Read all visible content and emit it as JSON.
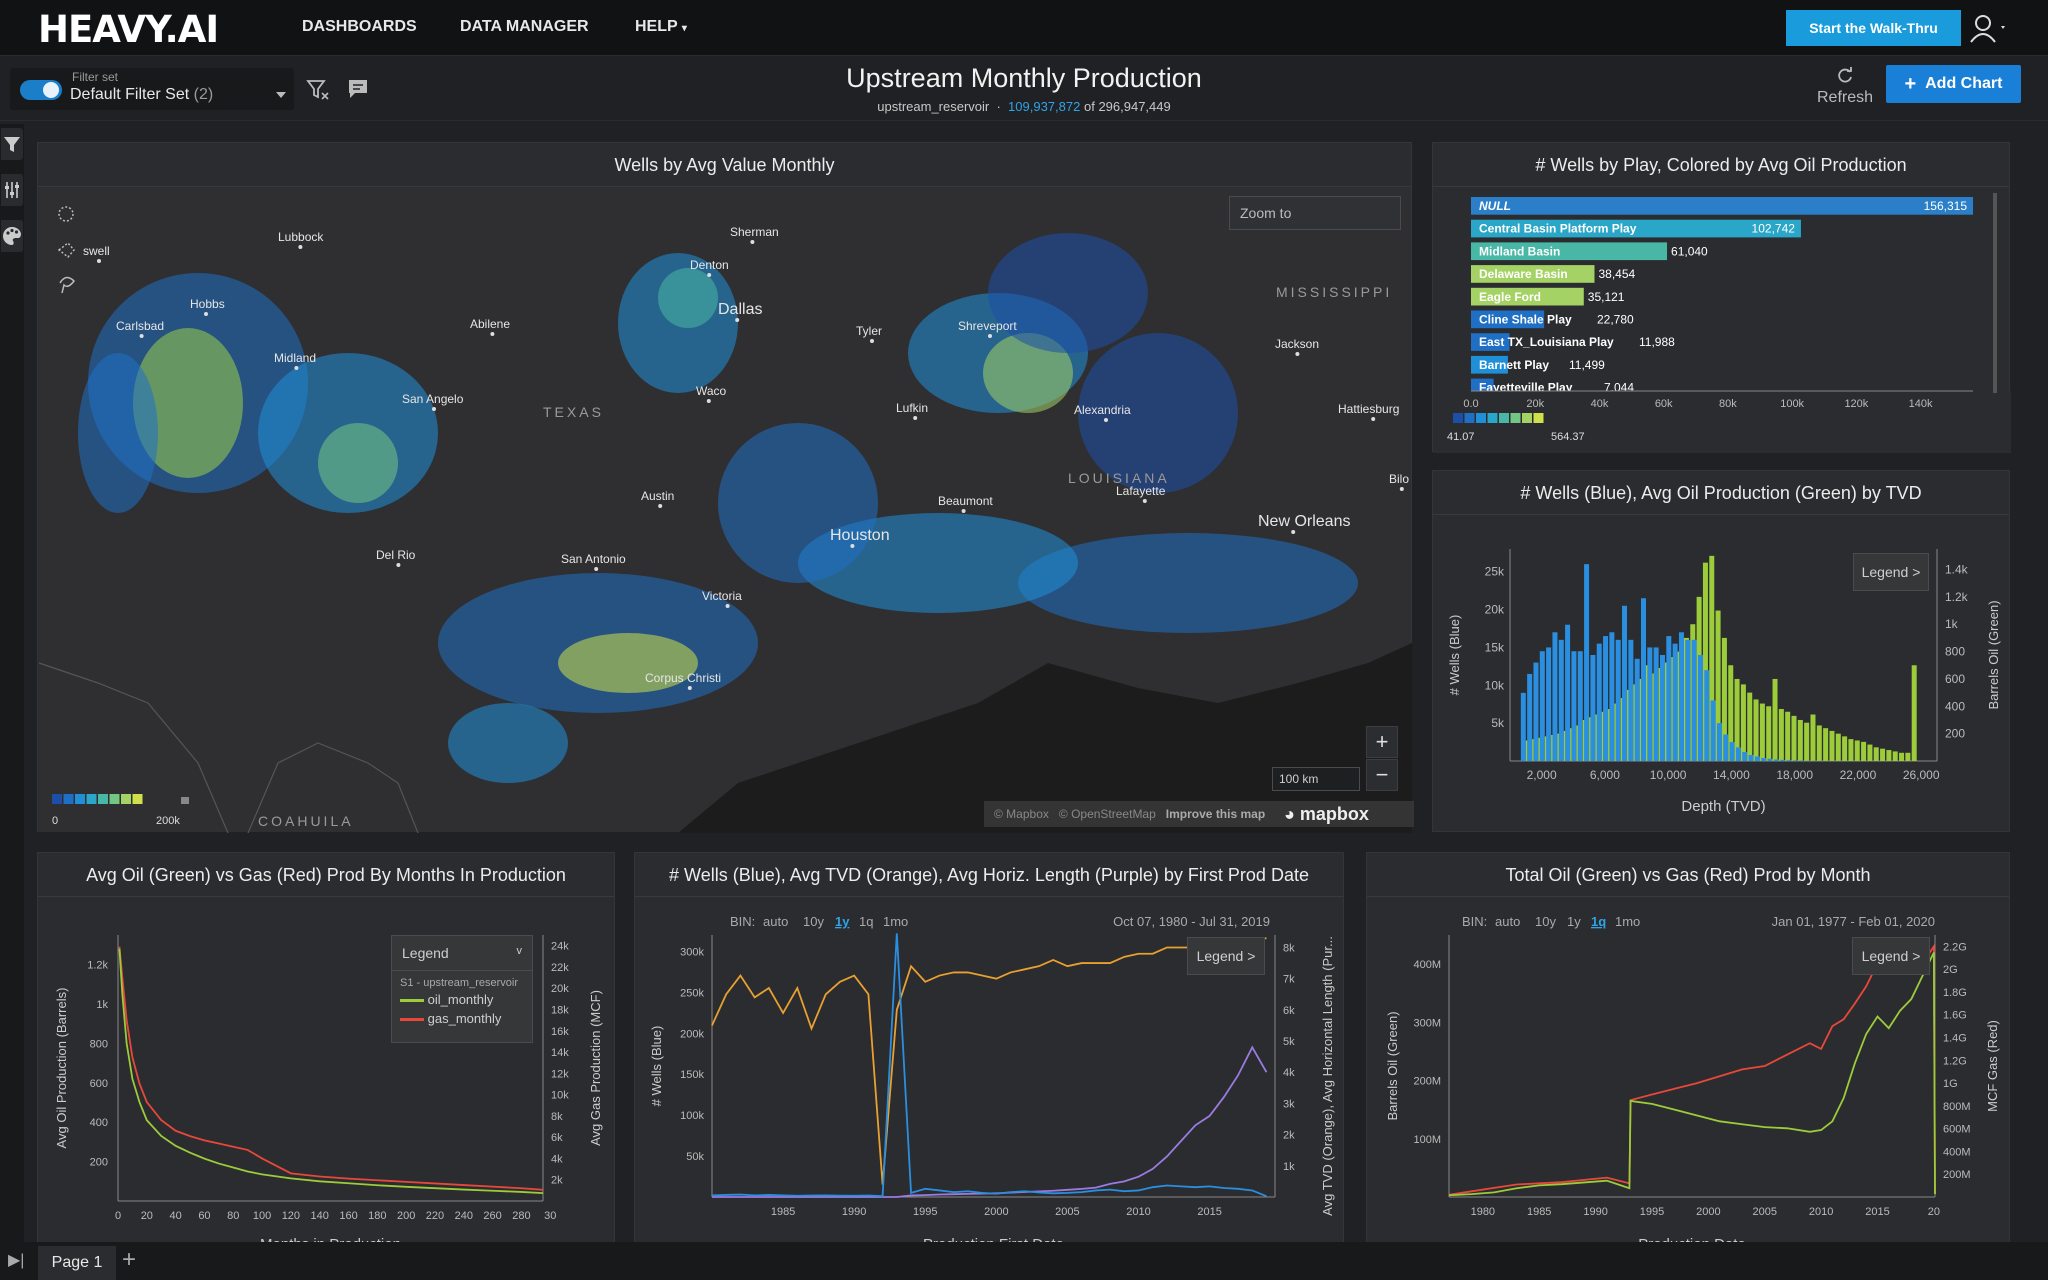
{
  "app": {
    "logo": "HEAVY.AI",
    "nav": [
      "DASHBOARDS",
      "DATA MANAGER",
      "HELP"
    ],
    "walkthru_label": "Start the Walk-Thru"
  },
  "toolbar": {
    "filter_set_label": "Filter set",
    "filter_set_value": "Default Filter Set",
    "filter_set_count": "(2)",
    "refresh_label": "Refresh",
    "add_chart_label": "Add Chart"
  },
  "dashboard": {
    "title": "Upstream Monthly Production",
    "table": "upstream_reservoir",
    "filtered_count": "109,937,872",
    "of_label": "of",
    "total_count": "296,947,449"
  },
  "map_panel": {
    "title": "Wells by Avg Value Monthly",
    "zoom_to_placeholder": "Zoom to",
    "cities": [
      "Lubbock",
      "swell",
      "Hobbs",
      "Carlsbad",
      "Midland",
      "Abilene",
      "Sherman",
      "Denton",
      "Dallas",
      "Tyler",
      "Shreveport",
      "Jackson",
      "San Angelo",
      "Waco",
      "Lufkin",
      "Alexandria",
      "Hattiesburg",
      "Austin",
      "Beaumont",
      "Lafayette",
      "Bilo",
      "Del Rio",
      "San Antonio",
      "Houston",
      "New Orleans",
      "Victoria",
      "Corpus Christi"
    ],
    "regions": [
      "TEXAS",
      "LOUISIANA",
      "MISSISSIPPI",
      "COAHUILA"
    ],
    "legend_min": "0",
    "legend_max": "200k",
    "scale_label": "100 km",
    "attribution": [
      "© Mapbox",
      "© OpenStreetMap",
      "Improve this map"
    ],
    "mapbox_label": "mapbox",
    "ramp_colors": [
      "#1d4fa8",
      "#1f6fc4",
      "#1f8fd8",
      "#2aa6c8",
      "#49b7a6",
      "#74c684",
      "#a4d264",
      "#cfe04a"
    ]
  },
  "play_panel": {
    "title": "# Wells by Play, Colored by Avg Oil Production",
    "legend_min": "41.07",
    "legend_max": "564.37",
    "x_ticks": [
      "0.0",
      "20k",
      "40k",
      "60k",
      "80k",
      "100k",
      "120k",
      "140k"
    ]
  },
  "tvd_panel": {
    "title": "# Wells (Blue), Avg Oil Production (Green) by TVD",
    "legend_label": "Legend >"
  },
  "months_panel": {
    "title": "Avg Oil (Green) vs Gas (Red) Prod By Months In Production",
    "legend_title": "Legend",
    "legend_source": "S1 - upstream_reservoir"
  },
  "first_prod_panel": {
    "title": "# Wells (Blue), Avg TVD (Orange), Avg Horiz. Length (Purple) by First Prod Date",
    "bin_label": "BIN:",
    "bins": [
      "auto",
      "10y",
      "1y",
      "1q",
      "1mo"
    ],
    "active_bin": "1y",
    "date_range": "Oct 07, 1980 - Jul 31, 2019",
    "legend_label": "Legend >"
  },
  "monthly_panel": {
    "title": "Total Oil (Green) vs Gas (Red) Prod by Month",
    "bin_label": "BIN:",
    "bins": [
      "auto",
      "10y",
      "1y",
      "1q",
      "1mo"
    ],
    "active_bin": "1q",
    "date_range": "Jan 01, 1977 - Feb 01, 2020",
    "legend_label": "Legend >"
  },
  "pages": {
    "tabs": [
      "Page 1"
    ]
  },
  "colors": {
    "accent": "#1a9bdc",
    "blue_series": "#2a8fe0",
    "green_series": "#9ccc3a",
    "red_series": "#e8483a",
    "orange_series": "#e8a030",
    "purple_series": "#9b7be0"
  },
  "chart_data": [
    {
      "type": "bar",
      "title": "# Wells by Play, Colored by Avg Oil Production",
      "orientation": "horizontal",
      "categories": [
        "NULL",
        "Central Basin Platform Play",
        "Midland Basin",
        "Delaware Basin",
        "Eagle Ford",
        "Cline Shale Play",
        "East TX_Louisiana Play",
        "Barnett Play",
        "Fayetteville Play"
      ],
      "values": [
        156315,
        102742,
        61040,
        38454,
        35121,
        22780,
        11988,
        11499,
        7044
      ],
      "value_labels": [
        "156,315",
        "102,742",
        "61,040",
        "38,454",
        "35,121",
        "22,780",
        "11,988",
        "11,499",
        "7,044"
      ],
      "color_values": [
        180,
        260,
        340,
        520,
        500,
        120,
        90,
        160,
        110
      ],
      "xlim": [
        0,
        156315
      ],
      "x_ticks": [
        "0.0",
        "20k",
        "40k",
        "60k",
        "80k",
        "100k",
        "120k",
        "140k"
      ],
      "color_legend": [
        "41.07",
        "564.37"
      ]
    },
    {
      "type": "bar",
      "title": "# Wells (Blue), Avg Oil Production (Green) by TVD",
      "xlabel": "Depth (TVD)",
      "ylabel": "# Wells (Blue)",
      "y2label": "Barrels Oil (Green)",
      "xlim": [
        0,
        27000
      ],
      "ylim": [
        0,
        28000
      ],
      "y2lim": [
        0,
        1550
      ],
      "x_ticks": [
        "2,000",
        "6,000",
        "10,000",
        "14,000",
        "18,000",
        "22,000",
        "26,000"
      ],
      "y_ticks": [
        "5k",
        "10k",
        "15k",
        "20k",
        "25k"
      ],
      "y2_ticks": [
        "200",
        "400",
        "600",
        "800",
        "1k",
        "1.2k",
        "1.4k"
      ],
      "x": [
        1000,
        1400,
        1800,
        2200,
        2600,
        3000,
        3400,
        3800,
        4200,
        4600,
        5000,
        5400,
        5800,
        6200,
        6600,
        7000,
        7400,
        7800,
        8200,
        8600,
        9000,
        9400,
        9800,
        10200,
        10600,
        11000,
        11400,
        11800,
        12200,
        12600,
        13000,
        13400,
        13800,
        14200,
        14600,
        15000,
        15400,
        15800,
        16200,
        16600,
        17000,
        17400,
        17800,
        18200,
        18600,
        19000,
        19400,
        19800,
        20200,
        20600,
        21000,
        21400,
        21800,
        22200,
        22600,
        23000,
        23400,
        23800,
        24200,
        24600,
        25000,
        25400
      ],
      "series": [
        {
          "name": "# Wells",
          "values": [
            9000,
            11500,
            13000,
            14500,
            15000,
            17000,
            16000,
            18000,
            14500,
            14500,
            26000,
            14000,
            15500,
            16500,
            17000,
            16000,
            20500,
            16000,
            13500,
            21500,
            15000,
            15000,
            14000,
            16500,
            15500,
            17000,
            16000,
            16000,
            14000,
            12000,
            8000,
            5000,
            3500,
            2500,
            1800,
            1200,
            800,
            600,
            400,
            300,
            200,
            150,
            100,
            80,
            60,
            40,
            30,
            20,
            15,
            10,
            8,
            5,
            4,
            3,
            2,
            2,
            1,
            1,
            1,
            1,
            1,
            1
          ]
        },
        {
          "name": "Avg Oil",
          "values": [
            150,
            160,
            170,
            180,
            190,
            200,
            220,
            240,
            260,
            300,
            320,
            340,
            360,
            380,
            420,
            460,
            520,
            560,
            600,
            700,
            640,
            680,
            720,
            760,
            800,
            900,
            1000,
            1200,
            1450,
            1500,
            1100,
            900,
            700,
            600,
            560,
            500,
            450,
            420,
            400,
            600,
            380,
            360,
            330,
            300,
            280,
            340,
            260,
            240,
            220,
            200,
            180,
            160,
            150,
            140,
            120,
            100,
            90,
            80,
            70,
            60,
            60,
            700
          ]
        }
      ]
    },
    {
      "type": "line",
      "title": "Avg Oil (Green) vs Gas (Red) Prod By Months In Production",
      "xlabel": "Months in Production",
      "ylabel": "Avg Oil Production (Barrels)",
      "y2label": "Avg Gas Production (MCF)",
      "xlim": [
        0,
        295
      ],
      "ylim": [
        0,
        1350
      ],
      "y2lim": [
        0,
        25000
      ],
      "x_ticks": [
        "0",
        "20",
        "40",
        "60",
        "80",
        "100",
        "120",
        "140",
        "160",
        "180",
        "200",
        "220",
        "240",
        "260",
        "280",
        "30"
      ],
      "y_ticks": [
        "200",
        "400",
        "600",
        "800",
        "1k",
        "1.2k"
      ],
      "y2_ticks": [
        "2k",
        "4k",
        "6k",
        "8k",
        "10k",
        "12k",
        "14k",
        "16k",
        "18k",
        "20k",
        "22k",
        "24k"
      ],
      "x": [
        1,
        3,
        6,
        10,
        15,
        20,
        30,
        40,
        50,
        60,
        70,
        80,
        90,
        100,
        120,
        140,
        160,
        180,
        200,
        220,
        240,
        260,
        280,
        295
      ],
      "series": [
        {
          "name": "oil_monthly",
          "values": [
            1280,
            1050,
            800,
            620,
            500,
            410,
            330,
            280,
            245,
            215,
            190,
            170,
            150,
            135,
            115,
            100,
            90,
            80,
            72,
            65,
            58,
            52,
            46,
            40
          ]
        },
        {
          "name": "gas_monthly",
          "values": [
            23900,
            21000,
            17000,
            13500,
            11000,
            9300,
            7600,
            6600,
            6100,
            5700,
            5400,
            5100,
            4800,
            4000,
            2600,
            2300,
            2100,
            1950,
            1800,
            1650,
            1500,
            1350,
            1200,
            1050
          ]
        }
      ]
    },
    {
      "type": "line",
      "title": "# Wells (Blue), Avg TVD (Orange), Avg Horiz. Length (Purple) by First Prod Date",
      "xlabel": "Production First Date",
      "ylabel": "# Wells (Blue)",
      "y2label": "Avg TVD (Orange), Avg Horizontal Length (Pur...",
      "xlim": [
        1980,
        2019.6
      ],
      "ylim": [
        0,
        320000
      ],
      "y2lim": [
        0,
        8400
      ],
      "x_ticks": [
        "1985",
        "1990",
        "1995",
        "2000",
        "2005",
        "2010",
        "2015"
      ],
      "y_ticks": [
        "50k",
        "100k",
        "150k",
        "200k",
        "250k",
        "300k"
      ],
      "y2_ticks": [
        "1k",
        "2k",
        "3k",
        "4k",
        "5k",
        "6k",
        "7k",
        "8k"
      ],
      "x": [
        1980,
        1981,
        1982,
        1983,
        1984,
        1985,
        1986,
        1987,
        1988,
        1989,
        1990,
        1991,
        1992,
        1993,
        1994,
        1995,
        1996,
        1997,
        1998,
        1999,
        2000,
        2001,
        2002,
        2003,
        2004,
        2005,
        2006,
        2007,
        2008,
        2009,
        2010,
        2011,
        2012,
        2013,
        2014,
        2015,
        2016,
        2017,
        2018,
        2019
      ],
      "series": [
        {
          "name": "# Wells",
          "values": [
            2000,
            2500,
            3000,
            2000,
            2500,
            2000,
            1500,
            1800,
            2000,
            1600,
            1500,
            1800,
            1000,
            322000,
            5000,
            10000,
            8000,
            6000,
            7000,
            5000,
            4000,
            6000,
            7000,
            5500,
            4500,
            5000,
            6000,
            8000,
            9000,
            7000,
            8000,
            12000,
            14000,
            13000,
            12000,
            13000,
            11000,
            10000,
            8000,
            1000
          ]
        },
        {
          "name": "Avg TVD",
          "values": [
            5500,
            6500,
            7100,
            6400,
            6700,
            5900,
            6700,
            5400,
            6500,
            6900,
            7100,
            6500,
            400,
            6000,
            7400,
            6900,
            7100,
            7200,
            7200,
            7100,
            7000,
            7200,
            7300,
            7400,
            7600,
            7400,
            7500,
            7500,
            7500,
            7700,
            7800,
            7800,
            8000,
            8000,
            8000,
            7900,
            8000,
            8100,
            8200,
            8300
          ]
        },
        {
          "name": "Avg Horiz. Length",
          "values": [
            0,
            0,
            0,
            0,
            0,
            0,
            0,
            0,
            0,
            0,
            0,
            0,
            0,
            0,
            50,
            60,
            80,
            90,
            100,
            110,
            120,
            140,
            160,
            180,
            200,
            230,
            260,
            300,
            420,
            500,
            650,
            900,
            1300,
            1800,
            2300,
            2600,
            3200,
            3900,
            4800,
            4000
          ]
        }
      ]
    },
    {
      "type": "line",
      "title": "Total Oil (Green) vs Gas (Red) Prod by Month",
      "xlabel": "Production Date",
      "ylabel": "Barrels Oil (Green)",
      "y2label": "MCF Gas (Red)",
      "xlim": [
        1977,
        2020.1
      ],
      "ylim": [
        0,
        450000000
      ],
      "y2lim": [
        0,
        2300000000
      ],
      "x_ticks": [
        "1980",
        "1985",
        "1990",
        "1995",
        "2000",
        "2005",
        "2010",
        "2015",
        "20"
      ],
      "y_ticks": [
        "100M",
        "200M",
        "300M",
        "400M"
      ],
      "y2_ticks": [
        "200M",
        "400M",
        "600M",
        "800M",
        "1G",
        "1.2G",
        "1.4G",
        "1.6G",
        "1.8G",
        "2G",
        "2.2G"
      ],
      "x": [
        1977,
        1979,
        1981,
        1983,
        1985,
        1987,
        1989,
        1991,
        1993,
        1993.1,
        1995,
        1997,
        1999,
        2001,
        2003,
        2005,
        2007,
        2009,
        2010,
        2011,
        2012,
        2013,
        2014,
        2015,
        2016,
        2017,
        2018,
        2019,
        2020,
        2020.1
      ],
      "series": [
        {
          "name": "Oil",
          "values": [
            3000000,
            5000000,
            8000000,
            15000000,
            20000000,
            22000000,
            25000000,
            28000000,
            15000000,
            165000000,
            160000000,
            150000000,
            140000000,
            130000000,
            125000000,
            120000000,
            118000000,
            112000000,
            115000000,
            130000000,
            170000000,
            230000000,
            280000000,
            310000000,
            290000000,
            320000000,
            340000000,
            380000000,
            420000000,
            5000000
          ]
        },
        {
          "name": "Gas",
          "values": [
            20000000,
            50000000,
            80000000,
            110000000,
            120000000,
            130000000,
            150000000,
            170000000,
            120000000,
            850000000,
            900000000,
            950000000,
            1000000000,
            1060000000,
            1120000000,
            1150000000,
            1250000000,
            1350000000,
            1300000000,
            1500000000,
            1560000000,
            1700000000,
            1850000000,
            2050000000,
            2150000000,
            2180000000,
            2200000000,
            2050000000,
            2200000000,
            30000000
          ]
        }
      ]
    }
  ]
}
